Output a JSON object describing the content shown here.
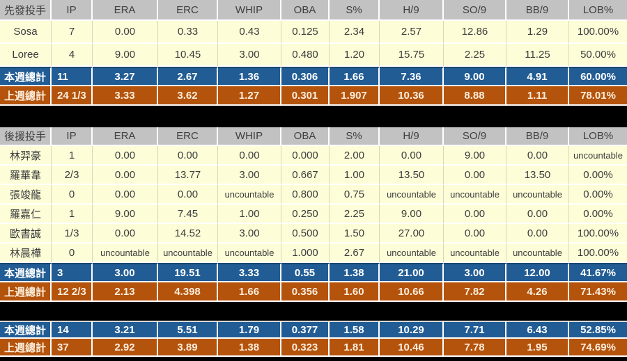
{
  "colors": {
    "background": "#000000",
    "header_bg": "#C2C2C2",
    "header_text": "#3F3F3F",
    "player_row_bg": "#FDFDD8",
    "player_row_text": "#3C3C3C",
    "week_total_bg": "#215C94",
    "lastweek_total_bg": "#B4530C",
    "total_text": "#FFFFFF"
  },
  "chart_data": [
    {
      "type": "table",
      "name": "starting-pitchers",
      "columns": [
        "先發投手",
        "IP",
        "ERA",
        "ERC",
        "WHIP",
        "OBA",
        "S%",
        "H/9",
        "SO/9",
        "BB/9",
        "LOB%"
      ],
      "rows": [
        {
          "type": "player",
          "cells": [
            "Sosa",
            "7",
            "0.00",
            "0.33",
            "0.43",
            "0.125",
            "2.34",
            "2.57",
            "12.86",
            "1.29",
            "100.00%"
          ]
        },
        {
          "type": "player",
          "cells": [
            "Loree",
            "4",
            "9.00",
            "10.45",
            "3.00",
            "0.480",
            "1.20",
            "15.75",
            "2.25",
            "11.25",
            "50.00%"
          ]
        },
        {
          "type": "week-total",
          "cells": [
            "本週總計",
            "11",
            "3.27",
            "2.67",
            "1.36",
            "0.306",
            "1.66",
            "7.36",
            "9.00",
            "4.91",
            "60.00%"
          ]
        },
        {
          "type": "lastweek-total",
          "cells": [
            "上週總計",
            "24 1/3",
            "3.33",
            "3.62",
            "1.27",
            "0.301",
            "1.907",
            "10.36",
            "8.88",
            "1.11",
            "78.01%"
          ]
        }
      ]
    },
    {
      "type": "table",
      "name": "relief-pitchers",
      "columns": [
        "後援投手",
        "IP",
        "ERA",
        "ERC",
        "WHIP",
        "OBA",
        "S%",
        "H/9",
        "SO/9",
        "BB/9",
        "LOB%"
      ],
      "rows": [
        {
          "type": "player",
          "cells": [
            "林羿豪",
            "1",
            "0.00",
            "0.00",
            "0.00",
            "0.000",
            "2.00",
            "0.00",
            "9.00",
            "0.00",
            "uncountable"
          ]
        },
        {
          "type": "player",
          "cells": [
            "羅華韋",
            "2/3",
            "0.00",
            "13.77",
            "3.00",
            "0.667",
            "1.00",
            "13.50",
            "0.00",
            "13.50",
            "0.00%"
          ]
        },
        {
          "type": "player",
          "cells": [
            "張竣龍",
            "0",
            "0.00",
            "0.00",
            "uncountable",
            "0.800",
            "0.75",
            "uncountable",
            "uncountable",
            "uncountable",
            "0.00%"
          ]
        },
        {
          "type": "player",
          "cells": [
            "羅嘉仁",
            "1",
            "9.00",
            "7.45",
            "1.00",
            "0.250",
            "2.25",
            "9.00",
            "0.00",
            "0.00",
            "0.00%"
          ]
        },
        {
          "type": "player",
          "cells": [
            "歐書誠",
            "1/3",
            "0.00",
            "14.52",
            "3.00",
            "0.500",
            "1.50",
            "27.00",
            "0.00",
            "0.00",
            "100.00%"
          ]
        },
        {
          "type": "player",
          "cells": [
            "林晨樺",
            "0",
            "uncountable",
            "uncountable",
            "uncountable",
            "1.000",
            "2.67",
            "uncountable",
            "uncountable",
            "uncountable",
            "100.00%"
          ]
        },
        {
          "type": "week-total",
          "cells": [
            "本週總計",
            "3",
            "3.00",
            "19.51",
            "3.33",
            "0.55",
            "1.38",
            "21.00",
            "3.00",
            "12.00",
            "41.67%"
          ]
        },
        {
          "type": "lastweek-total",
          "cells": [
            "上週總計",
            "12 2/3",
            "2.13",
            "4.398",
            "1.66",
            "0.356",
            "1.60",
            "10.66",
            "7.82",
            "4.26",
            "71.43%"
          ]
        }
      ]
    },
    {
      "type": "table",
      "name": "combined-totals",
      "columns": null,
      "rows": [
        {
          "type": "week-total",
          "cells": [
            "本週總計",
            "14",
            "3.21",
            "5.51",
            "1.79",
            "0.377",
            "1.58",
            "10.29",
            "7.71",
            "6.43",
            "52.85%"
          ]
        },
        {
          "type": "lastweek-total",
          "cells": [
            "上週總計",
            "37",
            "2.92",
            "3.89",
            "1.38",
            "0.323",
            "1.81",
            "10.46",
            "7.78",
            "1.95",
            "74.69%"
          ]
        }
      ]
    }
  ]
}
